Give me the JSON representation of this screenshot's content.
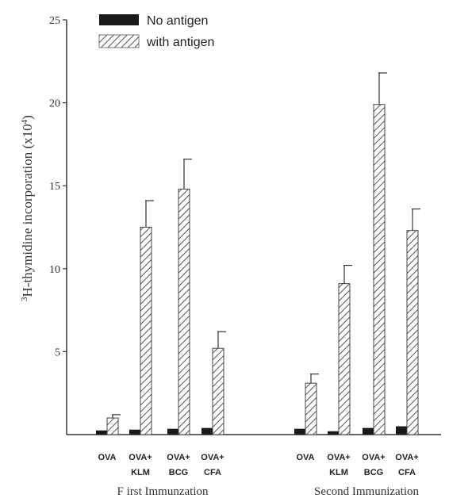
{
  "chart_data": {
    "type": "bar",
    "ylabel_prefix": "3",
    "ylabel_main": "H-thymidine incorporation (x10",
    "ylabel_exp": "4",
    "ylabel_suffix": ")",
    "ylim": [
      0,
      25
    ],
    "yticks": [
      5,
      10,
      15,
      20,
      25
    ],
    "legend": [
      {
        "name": "No antigen",
        "style": "solid",
        "color": "#1a1a1a"
      },
      {
        "name": "with antigen",
        "style": "hatched",
        "color": "#555555"
      }
    ],
    "legend_position": "top-left",
    "groups": [
      {
        "label": "F irst Immunzation",
        "categories": [
          {
            "line1": "OVA",
            "line2": "",
            "no_antigen": 0.25,
            "with_antigen": 1.0,
            "with_err": 0.2
          },
          {
            "line1": "OVA+",
            "line2": "KLM",
            "no_antigen": 0.3,
            "with_antigen": 12.5,
            "with_err": 1.6
          },
          {
            "line1": "OVA+",
            "line2": "BCG",
            "no_antigen": 0.35,
            "with_antigen": 14.8,
            "with_err": 1.8
          },
          {
            "line1": "OVA+",
            "line2": "CFA",
            "no_antigen": 0.4,
            "with_antigen": 5.2,
            "with_err": 1.0
          }
        ]
      },
      {
        "label": "Second Immunization",
        "categories": [
          {
            "line1": "OVA",
            "line2": "",
            "no_antigen": 0.35,
            "with_antigen": 3.1,
            "with_err": 0.55
          },
          {
            "line1": "OVA+",
            "line2": "KLM",
            "no_antigen": 0.2,
            "with_antigen": 9.1,
            "with_err": 1.1
          },
          {
            "line1": "OVA+",
            "line2": "BCG",
            "no_antigen": 0.4,
            "with_antigen": 19.9,
            "with_err": 1.9
          },
          {
            "line1": "OVA+",
            "line2": "CFA",
            "no_antigen": 0.5,
            "with_antigen": 12.3,
            "with_err": 1.3
          }
        ]
      }
    ]
  }
}
